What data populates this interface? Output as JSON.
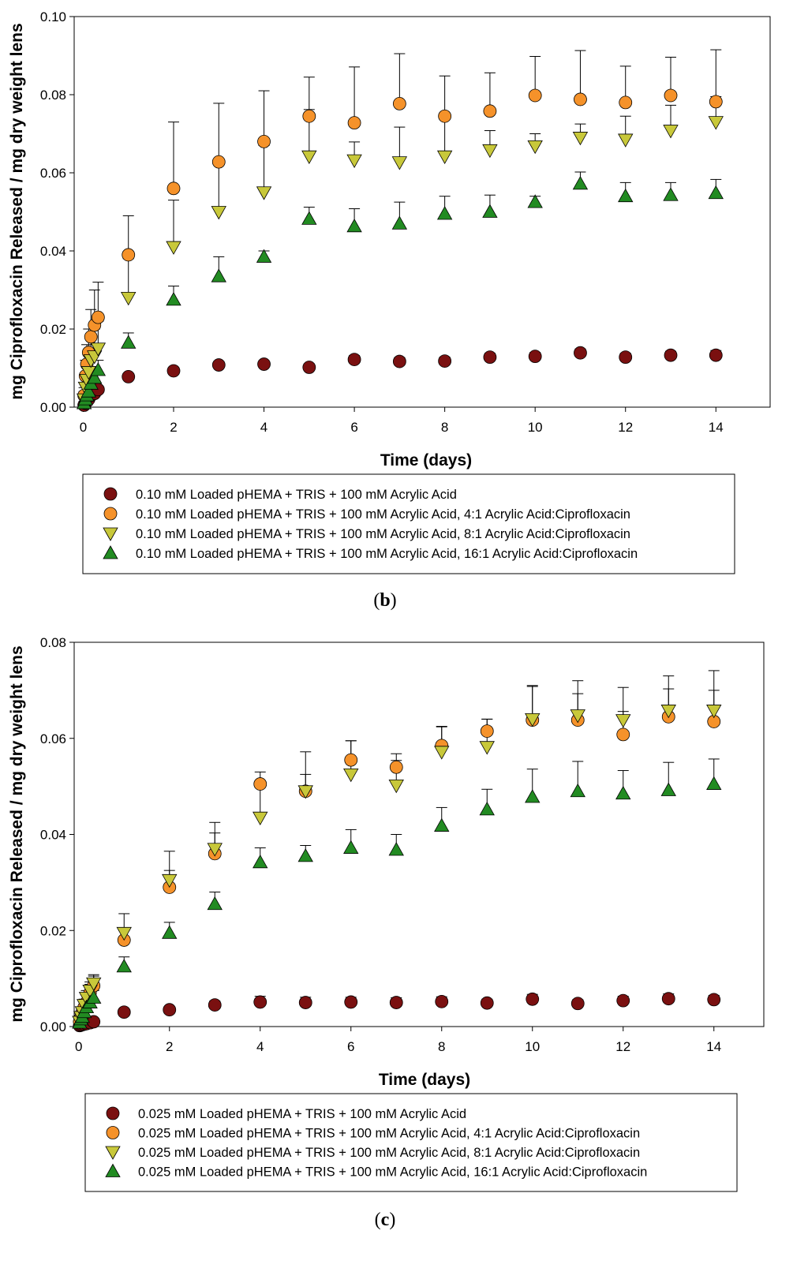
{
  "chart_data": [
    {
      "type": "scatter",
      "panel_label": "(b)",
      "panel_letter": "b",
      "xlabel": "Time (days)",
      "ylabel": "mg Ciprofloxacin Released / mg dry weight lens",
      "xlim": [
        -0.2,
        15.2
      ],
      "ylim": [
        0,
        0.1
      ],
      "x_ticks": [
        0,
        2,
        4,
        6,
        8,
        10,
        12,
        14
      ],
      "y_ticks": [
        0.0,
        0.02,
        0.04,
        0.06,
        0.08,
        0.1
      ],
      "y_tick_labels": [
        "0.00",
        "0.02",
        "0.04",
        "0.06",
        "0.08",
        "0.10"
      ],
      "legend": {
        "placement": "below"
      },
      "series": [
        {
          "name": "0.10 mM Loaded pHEMA + TRIS + 100 mM Acrylic Acid",
          "marker": "circle",
          "color": "#7a1010",
          "x": [
            0.02,
            0.05,
            0.08,
            0.12,
            0.17,
            0.25,
            0.33,
            1,
            2,
            3,
            4,
            5,
            6,
            7,
            8,
            9,
            10,
            11,
            12,
            13,
            14
          ],
          "y": [
            0.0005,
            0.001,
            0.0015,
            0.002,
            0.003,
            0.0035,
            0.0045,
            0.0078,
            0.0093,
            0.0108,
            0.011,
            0.0102,
            0.0122,
            0.0117,
            0.0118,
            0.0128,
            0.013,
            0.0139,
            0.0128,
            0.0133,
            0.0133
          ],
          "err": [
            0.0002,
            0.0003,
            0.0003,
            0.0004,
            0.0004,
            0.0005,
            0.0005,
            0.0008,
            0.0008,
            0.0009,
            0.0009,
            0.0009,
            0.001,
            0.001,
            0.001,
            0.001,
            0.001,
            0.001,
            0.001,
            0.001,
            0.0012
          ]
        },
        {
          "name": "0.10 mM Loaded pHEMA + TRIS + 100 mM Acrylic Acid, 4:1 Acrylic Acid:Ciprofloxacin",
          "marker": "circle",
          "color": "#f5922a",
          "x": [
            0.02,
            0.05,
            0.08,
            0.12,
            0.17,
            0.25,
            0.33,
            1,
            2,
            3,
            4,
            5,
            6,
            7,
            8,
            9,
            10,
            11,
            12,
            13,
            14
          ],
          "y": [
            0.003,
            0.008,
            0.011,
            0.014,
            0.018,
            0.021,
            0.023,
            0.039,
            0.056,
            0.0628,
            0.068,
            0.0745,
            0.0728,
            0.0777,
            0.0745,
            0.0758,
            0.0798,
            0.0788,
            0.078,
            0.0798,
            0.0782
          ],
          "err": [
            0.002,
            0.004,
            0.005,
            0.006,
            0.007,
            0.009,
            0.009,
            0.01,
            0.017,
            0.015,
            0.013,
            0.01,
            0.0143,
            0.0128,
            0.0103,
            0.0098,
            0.01,
            0.0125,
            0.0093,
            0.0098,
            0.0133
          ]
        },
        {
          "name": "0.10 mM Loaded pHEMA + TRIS + 100 mM Acrylic Acid, 8:1 Acrylic Acid:Ciprofloxacin",
          "marker": "triangle-down",
          "color": "#c8c83a",
          "x": [
            0.02,
            0.05,
            0.08,
            0.12,
            0.17,
            0.25,
            0.33,
            1,
            2,
            3,
            4,
            5,
            6,
            7,
            8,
            9,
            10,
            11,
            12,
            13,
            14
          ],
          "y": [
            0.002,
            0.005,
            0.007,
            0.009,
            0.012,
            0.013,
            0.015,
            0.028,
            0.041,
            0.05,
            0.055,
            0.0642,
            0.0632,
            0.0627,
            0.0642,
            0.0658,
            0.0668,
            0.069,
            0.0685,
            0.0708,
            0.073
          ],
          "err": [
            0.002,
            0.003,
            0.004,
            0.005,
            0.006,
            0.007,
            0.007,
            0.01,
            0.012,
            0.013,
            0.012,
            0.012,
            0.0047,
            0.009,
            0.0105,
            0.005,
            0.0032,
            0.0035,
            0.006,
            0.0065,
            0.0065
          ]
        },
        {
          "name": "0.10 mM Loaded pHEMA + TRIS + 100 mM Acrylic Acid, 16:1 Acrylic Acid:Ciprofloxacin",
          "marker": "triangle-up",
          "color": "#228b22",
          "x": [
            0.02,
            0.05,
            0.08,
            0.12,
            0.17,
            0.25,
            0.33,
            1,
            2,
            3,
            4,
            5,
            6,
            7,
            8,
            9,
            10,
            11,
            12,
            13,
            14
          ],
          "y": [
            0.001,
            0.002,
            0.003,
            0.004,
            0.006,
            0.0075,
            0.0095,
            0.0165,
            0.0275,
            0.0335,
            0.0385,
            0.0482,
            0.0463,
            0.047,
            0.0495,
            0.05,
            0.0525,
            0.0572,
            0.054,
            0.0543,
            0.0548
          ],
          "err": [
            0.0005,
            0.001,
            0.001,
            0.0015,
            0.002,
            0.002,
            0.0025,
            0.0025,
            0.0035,
            0.005,
            0.0015,
            0.003,
            0.0045,
            0.0055,
            0.0045,
            0.0043,
            0.0015,
            0.003,
            0.0035,
            0.0032,
            0.0035
          ]
        }
      ]
    },
    {
      "type": "scatter",
      "panel_label": "(c)",
      "panel_letter": "c",
      "xlabel": "Time (days)",
      "ylabel": "mg Ciprofloxacin Released / mg dry weight lens",
      "xlim": [
        -0.1,
        15.1
      ],
      "ylim": [
        0,
        0.08
      ],
      "x_ticks": [
        0,
        2,
        4,
        6,
        8,
        10,
        12,
        14
      ],
      "y_ticks": [
        0.0,
        0.02,
        0.04,
        0.06,
        0.08
      ],
      "y_tick_labels": [
        "0.00",
        "0.02",
        "0.04",
        "0.06",
        "0.08"
      ],
      "legend": {
        "placement": "below"
      },
      "series": [
        {
          "name": "0.025 mM Loaded pHEMA + TRIS + 100 mM Acrylic Acid",
          "marker": "circle",
          "color": "#7a1010",
          "x": [
            0.02,
            0.05,
            0.08,
            0.12,
            0.17,
            0.25,
            0.33,
            1,
            2,
            3,
            4,
            5,
            6,
            7,
            8,
            9,
            10,
            11,
            12,
            13,
            14
          ],
          "y": [
            0.0002,
            0.0003,
            0.0004,
            0.0005,
            0.0006,
            0.0008,
            0.001,
            0.003,
            0.0035,
            0.0045,
            0.0051,
            0.005,
            0.0051,
            0.005,
            0.0052,
            0.0049,
            0.0057,
            0.0048,
            0.0054,
            0.0058,
            0.0056
          ],
          "err": [
            0.0001,
            0.0001,
            0.0002,
            0.0002,
            0.0002,
            0.0003,
            0.0003,
            0.0005,
            0.0006,
            0.0008,
            0.0012,
            0.0011,
            0.001,
            0.001,
            0.001,
            0.0008,
            0.001,
            0.0008,
            0.0009,
            0.001,
            0.0009
          ]
        },
        {
          "name": "0.025 mM Loaded pHEMA + TRIS + 100 mM Acrylic Acid, 4:1 Acrylic Acid:Ciprofloxacin",
          "marker": "circle",
          "color": "#f5922a",
          "x": [
            0.02,
            0.05,
            0.08,
            0.12,
            0.17,
            0.25,
            0.33,
            1,
            2,
            3,
            4,
            5,
            6,
            7,
            8,
            9,
            10,
            11,
            12,
            13,
            14
          ],
          "y": [
            0.001,
            0.002,
            0.003,
            0.004,
            0.005,
            0.007,
            0.0085,
            0.018,
            0.029,
            0.036,
            0.0505,
            0.049,
            0.0555,
            0.054,
            0.0585,
            0.0615,
            0.0638,
            0.0638,
            0.0608,
            0.0645,
            0.0635
          ],
          "err": [
            0.0005,
            0.0008,
            0.001,
            0.0012,
            0.0015,
            0.0018,
            0.002,
            0.002,
            0.0035,
            0.0043,
            0.0025,
            0.0035,
            0.004,
            0.0028,
            0.004,
            0.0025,
            0.0072,
            0.0055,
            0.0048,
            0.0058,
            0.0065
          ]
        },
        {
          "name": "0.025 mM Loaded pHEMA + TRIS + 100 mM Acrylic Acid, 8:1 Acrylic Acid:Ciprofloxacin",
          "marker": "triangle-down",
          "color": "#c8c83a",
          "x": [
            0.02,
            0.05,
            0.08,
            0.12,
            0.17,
            0.25,
            0.33,
            1,
            2,
            3,
            4,
            5,
            6,
            7,
            8,
            9,
            10,
            11,
            12,
            13,
            14
          ],
          "y": [
            0.001,
            0.002,
            0.003,
            0.0045,
            0.006,
            0.0075,
            0.009,
            0.0195,
            0.0305,
            0.037,
            0.0435,
            0.049,
            0.0525,
            0.0502,
            0.0572,
            0.0582,
            0.064,
            0.0648,
            0.0638,
            0.0658,
            0.0658
          ],
          "err": [
            0.0005,
            0.0008,
            0.001,
            0.0012,
            0.0015,
            0.0018,
            0.0018,
            0.004,
            0.006,
            0.0055,
            0.0068,
            0.0082,
            0.007,
            0.0052,
            0.0052,
            0.0058,
            0.0068,
            0.0072,
            0.0068,
            0.0072,
            0.0083
          ]
        },
        {
          "name": "0.025 mM Loaded pHEMA + TRIS + 100 mM Acrylic Acid, 16:1 Acrylic Acid:Ciprofloxacin",
          "marker": "triangle-up",
          "color": "#228b22",
          "x": [
            0.02,
            0.05,
            0.08,
            0.12,
            0.17,
            0.25,
            0.33,
            1,
            2,
            3,
            4,
            5,
            6,
            7,
            8,
            9,
            10,
            11,
            12,
            13,
            14
          ],
          "y": [
            0.0008,
            0.0015,
            0.002,
            0.003,
            0.004,
            0.005,
            0.006,
            0.0125,
            0.0195,
            0.0255,
            0.0342,
            0.0355,
            0.0372,
            0.0368,
            0.0418,
            0.0452,
            0.0478,
            0.049,
            0.0485,
            0.0492,
            0.0505
          ],
          "err": [
            0.0004,
            0.0006,
            0.0008,
            0.001,
            0.0012,
            0.0014,
            0.0015,
            0.002,
            0.0022,
            0.0025,
            0.003,
            0.0022,
            0.0038,
            0.0032,
            0.0038,
            0.0042,
            0.0058,
            0.0062,
            0.0048,
            0.0058,
            0.0052
          ]
        }
      ]
    }
  ]
}
